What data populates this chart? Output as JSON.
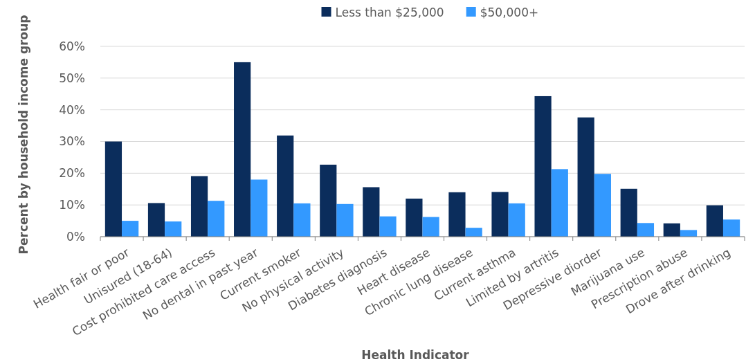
{
  "chart_data": {
    "type": "bar",
    "xlabel": "Health Indicator",
    "ylabel": "Percent by household income group",
    "categories": [
      "Health fair or poor",
      "Unisured (18-64)",
      "Cost prohibited care access",
      "No dental in past year",
      "Current smoker",
      "No physical activity",
      "Diabetes diagnosis",
      "Heart disease",
      "Chronic lung disease",
      "Current asthma",
      "Limited by artritis",
      "Depressive diorder",
      "Marijuana use",
      "Prescription abuse",
      "Drove after drinking"
    ],
    "series": [
      {
        "name": "Less than $25,000",
        "color": "#0b2d5c",
        "values": [
          30,
          10.6,
          19.1,
          55,
          31.9,
          22.7,
          15.6,
          12,
          14,
          14.1,
          44.3,
          37.6,
          15.1,
          4.2,
          9.9
        ]
      },
      {
        "name": "$50,000+",
        "color": "#3399ff",
        "values": [
          5,
          4.8,
          11.3,
          18,
          10.5,
          10.3,
          6.4,
          6.2,
          2.8,
          10.5,
          21.3,
          19.8,
          4.3,
          2.1,
          5.4
        ]
      }
    ],
    "ylim": [
      0,
      60
    ],
    "yticks": [
      {
        "value": 0,
        "label": "0%"
      },
      {
        "value": 10,
        "label": "10%"
      },
      {
        "value": 20,
        "label": "20%"
      },
      {
        "value": 30,
        "label": "30%"
      },
      {
        "value": 40,
        "label": "40%"
      },
      {
        "value": 50,
        "label": "50%"
      },
      {
        "value": 60,
        "label": "60%"
      }
    ],
    "grid": "y",
    "legend": "top"
  }
}
